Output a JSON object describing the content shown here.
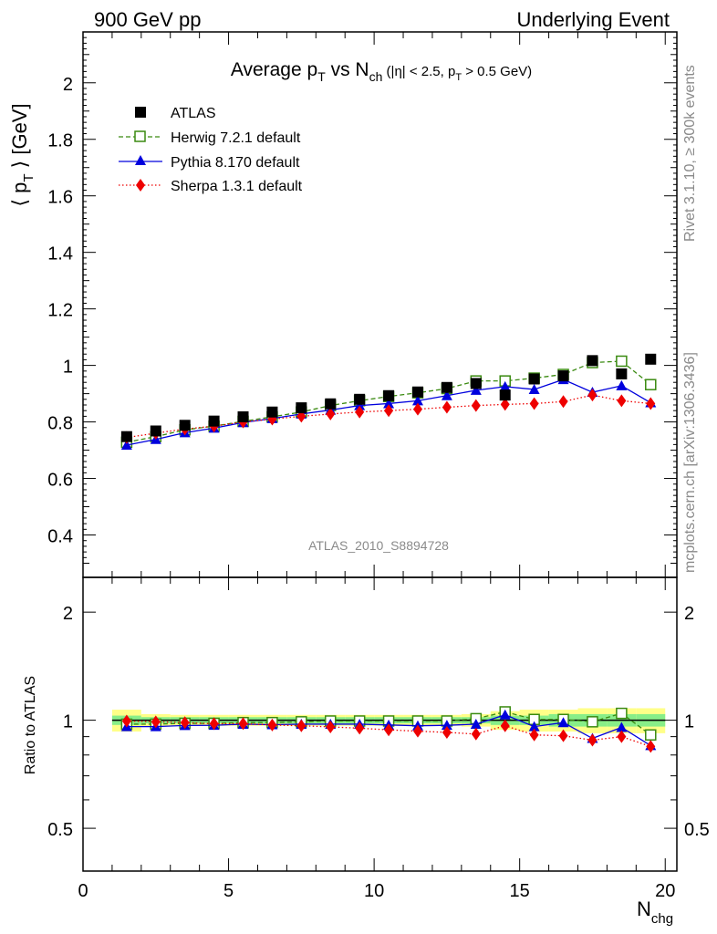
{
  "header": {
    "left": "900 GeV pp",
    "right": "Underlying Event"
  },
  "side_text": {
    "top": "Rivet 3.1.10, ≥ 300k events",
    "bottom": "mcplots.cern.ch [arXiv:1306.3436]"
  },
  "watermark": "ATLAS_2010_S8894728",
  "colors": {
    "atlas": "#000000",
    "herwig": "#3a8a10",
    "pythia": "#0000dd",
    "sherpa": "#ee0000",
    "band_yellow": "#ffff88",
    "band_green": "#88ee88"
  },
  "chart_data": [
    {
      "type": "line",
      "title": "Average pT vs Nch (|η| < 2.5, pT > 0.5 GeV)",
      "ylabel": "⟨ pT ⟩ [GeV]",
      "xlabel": "Nchg",
      "xlim": [
        0,
        20.4
      ],
      "ylim": [
        0.25,
        2.18
      ],
      "yticks": [
        "0.4",
        "0.6",
        "0.8",
        "1",
        "1.2",
        "1.4",
        "1.6",
        "1.8",
        "2"
      ],
      "x": [
        1.5,
        2.5,
        3.5,
        4.5,
        5.5,
        6.5,
        7.5,
        8.5,
        9.5,
        10.5,
        11.5,
        12.5,
        13.5,
        14.5,
        15.5,
        16.5,
        17.5,
        18.5,
        19.5
      ],
      "series": [
        {
          "name": "ATLAS",
          "key": "atlas",
          "values": [
            0.748,
            0.768,
            0.788,
            0.803,
            0.818,
            0.835,
            0.85,
            0.864,
            0.88,
            0.893,
            0.906,
            0.922,
            0.936,
            0.895,
            0.952,
            0.963,
            1.017,
            0.97,
            1.022
          ]
        },
        {
          "name": "Herwig 7.2.1 default",
          "key": "herwig",
          "values": [
            0.728,
            0.748,
            0.772,
            0.785,
            0.802,
            0.818,
            0.835,
            0.858,
            0.875,
            0.89,
            0.903,
            0.918,
            0.945,
            0.945,
            0.955,
            0.968,
            1.01,
            1.015,
            0.932
          ]
        },
        {
          "name": "Pythia 8.170 default",
          "key": "pythia",
          "values": [
            0.718,
            0.738,
            0.762,
            0.778,
            0.798,
            0.812,
            0.828,
            0.842,
            0.858,
            0.865,
            0.875,
            0.893,
            0.912,
            0.925,
            0.915,
            0.95,
            0.905,
            0.928,
            0.868
          ]
        },
        {
          "name": "Sherpa 1.3.1 default",
          "key": "sherpa",
          "values": [
            0.745,
            0.76,
            0.775,
            0.785,
            0.8,
            0.81,
            0.82,
            0.828,
            0.835,
            0.84,
            0.845,
            0.852,
            0.858,
            0.862,
            0.865,
            0.872,
            0.895,
            0.875,
            0.865
          ]
        }
      ]
    },
    {
      "type": "line",
      "ylabel": "Ratio to ATLAS",
      "xlabel": "Nchg",
      "xlim": [
        0,
        20.4
      ],
      "ylim": [
        0.38,
        2.5
      ],
      "log_y": true,
      "yticks": [
        "0.5",
        "1",
        "2"
      ],
      "xticks": [
        "0",
        "5",
        "10",
        "15",
        "20"
      ],
      "x": [
        1.5,
        2.5,
        3.5,
        4.5,
        5.5,
        6.5,
        7.5,
        8.5,
        9.5,
        10.5,
        11.5,
        12.5,
        13.5,
        14.5,
        15.5,
        16.5,
        17.5,
        18.5,
        19.5
      ],
      "band_yellow": [
        0.07,
        0.04,
        0.035,
        0.035,
        0.035,
        0.035,
        0.035,
        0.035,
        0.035,
        0.035,
        0.035,
        0.035,
        0.04,
        0.06,
        0.07,
        0.07,
        0.08,
        0.08,
        0.08
      ],
      "band_green": [
        0.03,
        0.02,
        0.02,
        0.02,
        0.02,
        0.02,
        0.02,
        0.02,
        0.02,
        0.02,
        0.02,
        0.02,
        0.02,
        0.03,
        0.03,
        0.04,
        0.04,
        0.04,
        0.04
      ],
      "series": [
        {
          "name": "Herwig 7.2.1 default",
          "key": "herwig",
          "values": [
            0.975,
            0.975,
            0.98,
            0.98,
            0.985,
            0.985,
            0.99,
            0.995,
            0.995,
            0.995,
            0.995,
            0.995,
            1.01,
            1.055,
            1.005,
            1.005,
            0.99,
            1.045,
            0.91
          ]
        },
        {
          "name": "Pythia 8.170 default",
          "key": "pythia",
          "values": [
            0.96,
            0.96,
            0.967,
            0.968,
            0.975,
            0.972,
            0.975,
            0.975,
            0.975,
            0.97,
            0.965,
            0.968,
            0.975,
            1.035,
            0.96,
            0.985,
            0.89,
            0.955,
            0.85
          ]
        },
        {
          "name": "Sherpa 1.3.1 default",
          "key": "sherpa",
          "values": [
            0.995,
            0.99,
            0.985,
            0.978,
            0.978,
            0.97,
            0.965,
            0.958,
            0.95,
            0.94,
            0.932,
            0.925,
            0.915,
            0.965,
            0.91,
            0.905,
            0.88,
            0.9,
            0.845
          ]
        }
      ]
    }
  ]
}
